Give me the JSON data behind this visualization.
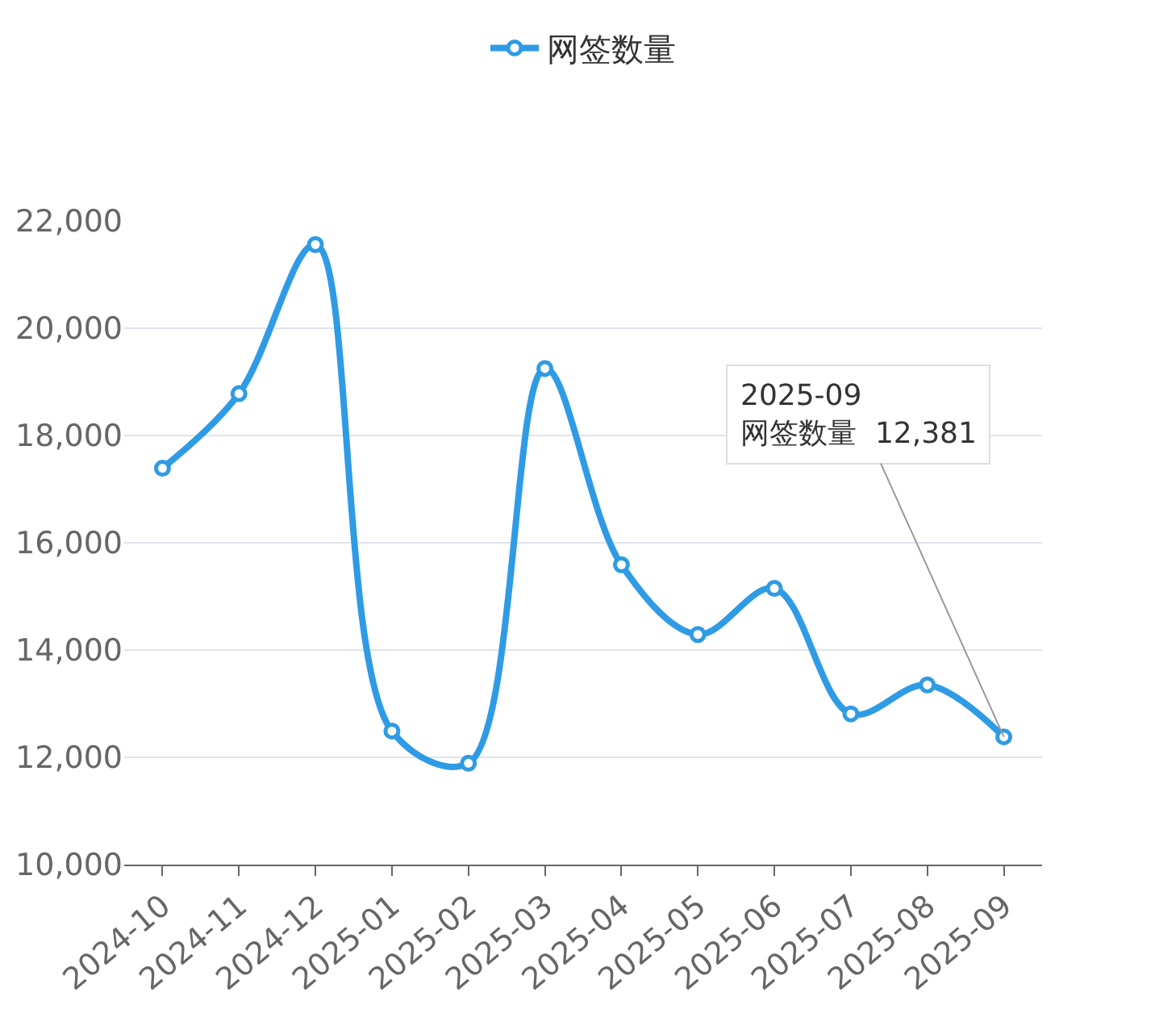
{
  "chart_data": {
    "type": "line",
    "categories": [
      "2024-10",
      "2024-11",
      "2024-12",
      "2025-01",
      "2025-02",
      "2025-03",
      "2025-04",
      "2025-05",
      "2025-06",
      "2025-07",
      "2025-08",
      "2025-09"
    ],
    "series": [
      {
        "name": "网签数量",
        "color": "#2f9be4",
        "values": [
          17390,
          18780,
          21560,
          12490,
          11890,
          19250,
          15590,
          14290,
          15150,
          12810,
          13350,
          12381
        ]
      }
    ],
    "ylim": [
      10000,
      22000
    ],
    "yticks": [
      {
        "value": 10000,
        "label": "10,000"
      },
      {
        "value": 12000,
        "label": "12,000"
      },
      {
        "value": 14000,
        "label": "14,000"
      },
      {
        "value": 16000,
        "label": "16,000"
      },
      {
        "value": 18000,
        "label": "18,000"
      },
      {
        "value": 20000,
        "label": "20,000"
      },
      {
        "value": 22000,
        "label": "22,000"
      }
    ],
    "grid": "y",
    "legend": "top",
    "marker": "circle",
    "line_style": "solid",
    "annotations": [
      {
        "text": "2025-09\n网签数量  12,381",
        "x": "2025-09",
        "y": 12381
      }
    ]
  }
}
